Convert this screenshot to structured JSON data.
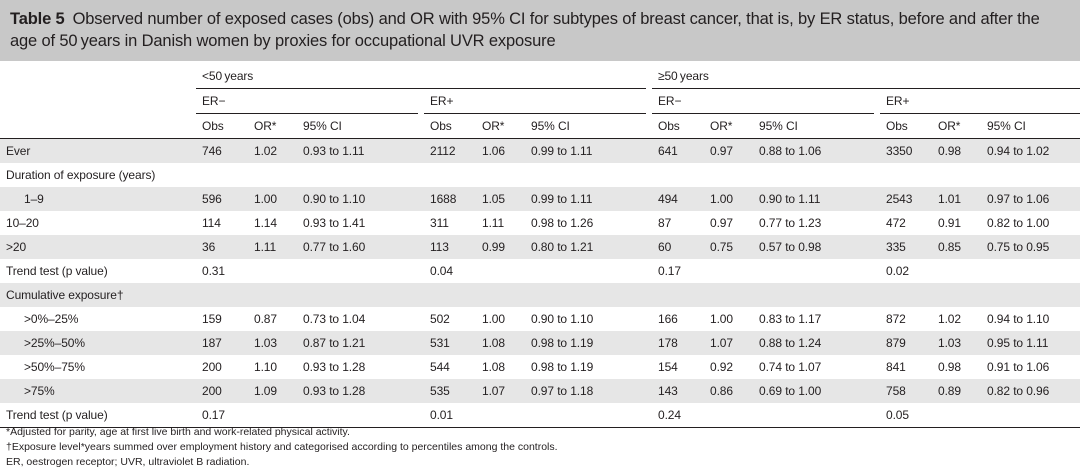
{
  "caption": {
    "label": "Table 5",
    "text": "Observed number of exposed cases (obs) and OR with 95% CI for subtypes of breast cancer, that is, by ER status, before and after the age of 50 years in Danish women by proxies for occupational UVR exposure"
  },
  "age_groups": [
    "<50 years",
    "≥50 years"
  ],
  "er_groups": [
    "ER−",
    "ER+",
    "ER−",
    "ER+"
  ],
  "columns": [
    "Obs",
    "OR*",
    "95% CI"
  ],
  "rows": [
    {
      "label": "Ever",
      "shade": true,
      "indent": false,
      "cells": [
        "746",
        "1.02",
        "0.93 to 1.11",
        "2112",
        "1.06",
        "0.99 to 1.11",
        "641",
        "0.97",
        "0.88 to 1.06",
        "3350",
        "0.98",
        "0.94 to 1.02"
      ]
    },
    {
      "label": "Duration of exposure (years)",
      "shade": false,
      "indent": false,
      "cells": [
        "",
        "",
        "",
        "",
        "",
        "",
        "",
        "",
        "",
        "",
        "",
        ""
      ]
    },
    {
      "label": "1–9",
      "shade": true,
      "indent": true,
      "cells": [
        "596",
        "1.00",
        "0.90 to 1.10",
        "1688",
        "1.05",
        "0.99 to 1.11",
        "494",
        "1.00",
        "0.90 to 1.11",
        "2543",
        "1.01",
        "0.97 to 1.06"
      ]
    },
    {
      "label": "10–20",
      "shade": false,
      "indent": false,
      "cells": [
        "114",
        "1.14",
        "0.93 to 1.41",
        "311",
        "1.11",
        "0.98 to 1.26",
        "87",
        "0.97",
        "0.77 to 1.23",
        "472",
        "0.91",
        "0.82 to 1.00"
      ]
    },
    {
      "label": ">20",
      "shade": true,
      "indent": false,
      "cells": [
        "36",
        "1.11",
        "0.77 to 1.60",
        "113",
        "0.99",
        "0.80 to 1.21",
        "60",
        "0.75",
        "0.57 to 0.98",
        "335",
        "0.85",
        "0.75 to 0.95"
      ]
    },
    {
      "label": "Trend test (p value)",
      "shade": false,
      "indent": false,
      "cells": [
        "0.31",
        "",
        "",
        "0.04",
        "",
        "",
        "0.17",
        "",
        "",
        "0.02",
        "",
        ""
      ]
    },
    {
      "label": "Cumulative exposure†",
      "shade": true,
      "indent": false,
      "cells": [
        "",
        "",
        "",
        "",
        "",
        "",
        "",
        "",
        "",
        "",
        "",
        ""
      ]
    },
    {
      "label": ">0%–25%",
      "shade": false,
      "indent": true,
      "cells": [
        "159",
        "0.87",
        "0.73 to 1.04",
        "502",
        "1.00",
        "0.90 to 1.10",
        "166",
        "1.00",
        "0.83 to 1.17",
        "872",
        "1.02",
        "0.94 to 1.10"
      ]
    },
    {
      "label": ">25%–50%",
      "shade": true,
      "indent": true,
      "cells": [
        "187",
        "1.03",
        "0.87 to 1.21",
        "531",
        "1.08",
        "0.98 to 1.19",
        "178",
        "1.07",
        "0.88 to 1.24",
        "879",
        "1.03",
        "0.95 to 1.11"
      ]
    },
    {
      "label": ">50%–75%",
      "shade": false,
      "indent": true,
      "cells": [
        "200",
        "1.10",
        "0.93 to 1.28",
        "544",
        "1.08",
        "0.98 to 1.19",
        "154",
        "0.92",
        "0.74 to 1.07",
        "841",
        "0.98",
        "0.91 to 1.06"
      ]
    },
    {
      "label": ">75%",
      "shade": true,
      "indent": true,
      "cells": [
        "200",
        "1.09",
        "0.93 to 1.28",
        "535",
        "1.07",
        "0.97 to 1.18",
        "143",
        "0.86",
        "0.69 to 1.00",
        "758",
        "0.89",
        "0.82 to 0.96"
      ]
    },
    {
      "label": "Trend test (p value)",
      "shade": false,
      "indent": false,
      "cells": [
        "0.17",
        "",
        "",
        "0.01",
        "",
        "",
        "0.24",
        "",
        "",
        "0.05",
        "",
        ""
      ]
    }
  ],
  "footnotes": [
    "*Adjusted for parity, age at first live birth and work-related physical activity.",
    "†Exposure level*years summed over employment history and categorised according to percentiles among the controls.",
    "ER, oestrogen receptor; UVR, ultraviolet B radiation."
  ]
}
